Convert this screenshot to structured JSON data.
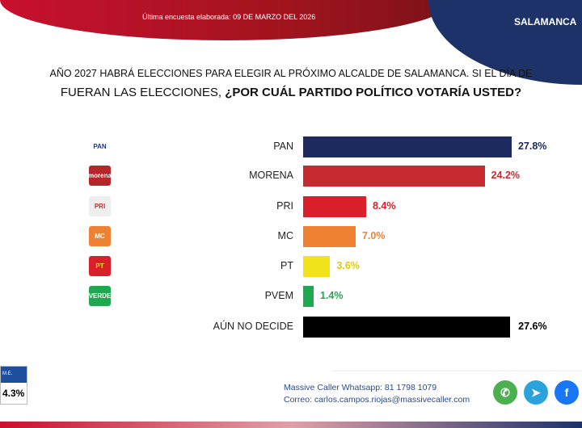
{
  "header": {
    "date": "Última encuesta elaborada: 09 DE MARZO DEL 2026",
    "city": "SALAMANCA"
  },
  "question": {
    "line1": "AÑO 2027 HABRÁ ELECCIONES PARA ELEGIR AL PRÓXIMO ALCALDE DE SALAMANCA. SI EL DÍA DE",
    "line2_plain": "FUERAN LAS ELECCIONES, ",
    "line2_bold": "¿POR CUÁL PARTIDO POLÍTICO VOTARÍA USTED?"
  },
  "chart_data": {
    "type": "bar",
    "orientation": "horizontal",
    "categories": [
      "PAN",
      "MORENA",
      "PRI",
      "MC",
      "PT",
      "PVEM",
      "AÚN NO DECIDE"
    ],
    "values": [
      27.8,
      24.2,
      8.4,
      7.0,
      3.6,
      1.4,
      27.6
    ],
    "labels": [
      "27.8%",
      "24.2%",
      "8.4%",
      "7.0%",
      "3.6%",
      "1.4%",
      "27.6%"
    ],
    "colors": [
      "#1d2a5e",
      "#c62a2f",
      "#d9202a",
      "#ef8232",
      "#f2e21c",
      "#1fa84f",
      "#000000"
    ],
    "logos": [
      "PAN",
      "morena",
      "PRI",
      "MC",
      "PT",
      "VERDE"
    ]
  },
  "margin_error": {
    "label": "M.E.",
    "value": "4.3%"
  },
  "contact": {
    "whatsapp": "Massive Caller Whatsapp: 81 1798 1079",
    "email": "Correo: carlos.campos.riojas@massivecaller.com"
  },
  "social": [
    "whatsapp-icon",
    "telegram-icon",
    "facebook-icon"
  ]
}
